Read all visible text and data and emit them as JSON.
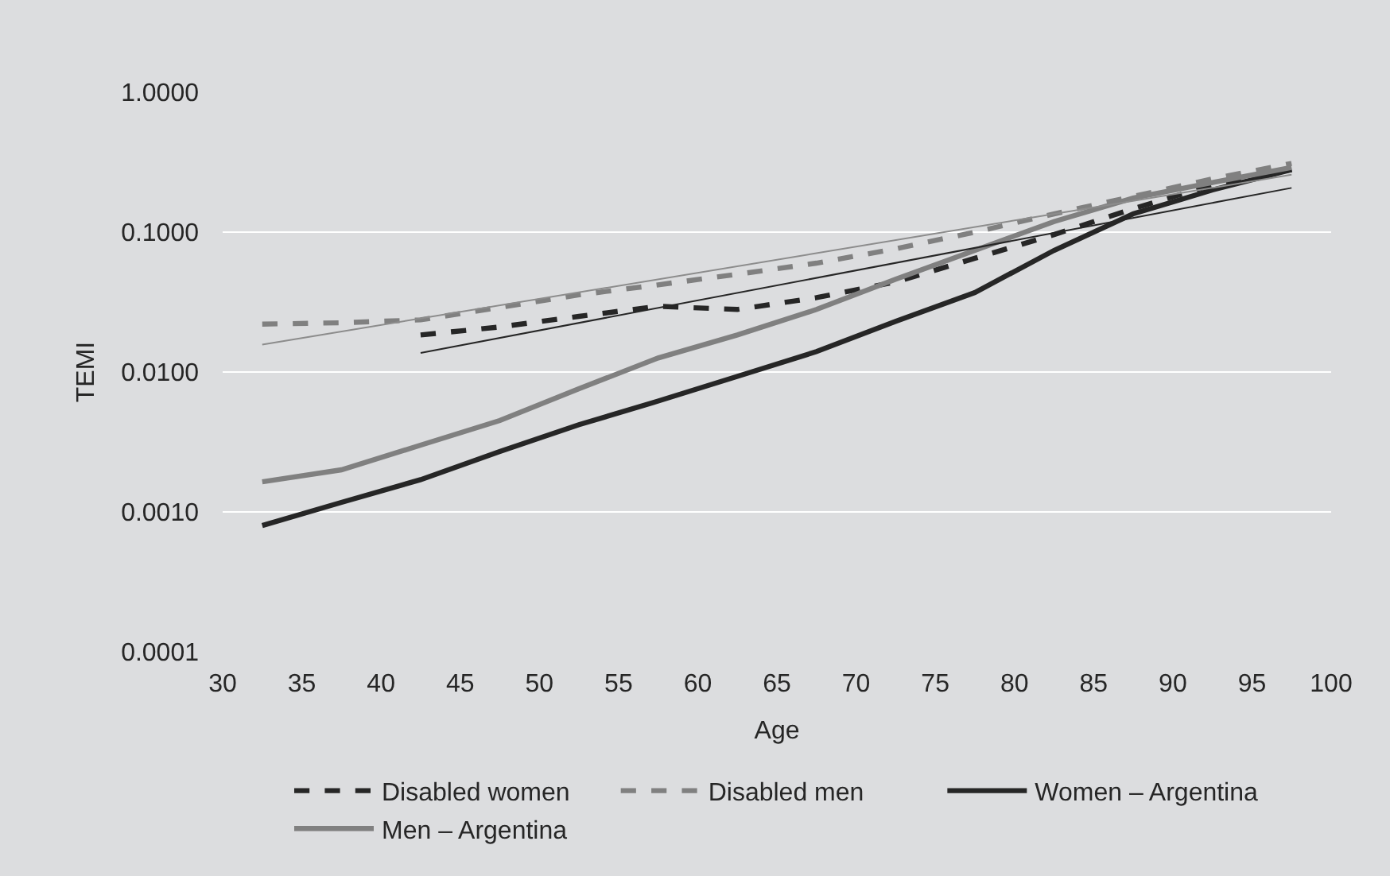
{
  "chart_data": {
    "type": "line",
    "xlabel": "Age",
    "ylabel": "TEMI",
    "x": [
      32.5,
      37.5,
      42.5,
      47.5,
      52.5,
      57.5,
      62.5,
      67.5,
      72.5,
      77.5,
      82.5,
      87.5,
      92.5,
      97.5
    ],
    "series": [
      {
        "name": "Disabled women",
        "color": "#262626",
        "line_style": "dashed",
        "values": [
          null,
          null,
          0.0184,
          0.021,
          0.025,
          0.0295,
          0.028,
          0.034,
          0.044,
          0.065,
          0.096,
          0.147,
          0.217,
          0.28
        ]
      },
      {
        "name": "Disabled men",
        "color": "#808080",
        "line_style": "dashed",
        "values": [
          0.022,
          0.0225,
          0.0236,
          0.029,
          0.0356,
          0.042,
          0.05,
          0.06,
          0.076,
          0.1,
          0.135,
          0.18,
          0.24,
          0.31
        ]
      },
      {
        "name": "Women – Argentina",
        "color": "#262626",
        "line_style": "solid",
        "values": [
          0.0008,
          0.00117,
          0.0017,
          0.0027,
          0.0042,
          0.0062,
          0.0093,
          0.014,
          0.023,
          0.037,
          0.074,
          0.135,
          0.2,
          0.28
        ]
      },
      {
        "name": "Men – Argentina",
        "color": "#808080",
        "line_style": "solid",
        "values": [
          0.00164,
          0.002,
          0.003,
          0.0045,
          0.0076,
          0.0126,
          0.0184,
          0.028,
          0.046,
          0.074,
          0.119,
          0.175,
          0.226,
          0.29
        ]
      },
      {
        "type": "line",
        "color": "#8c8c8c",
        "line_style": "solid",
        "x": [
          32.5,
          97.5
        ],
        "values": [
          0.0157,
          0.257
        ]
      },
      {
        "type": "line",
        "color": "#262626",
        "line_style": "solid",
        "x": [
          42.5,
          97.5
        ],
        "values": [
          0.0137,
          0.207
        ]
      }
    ],
    "log": "y",
    "xlim": [
      30,
      100
    ],
    "xticks": [
      30,
      35,
      40,
      45,
      50,
      55,
      60,
      65,
      70,
      75,
      80,
      85,
      90,
      95,
      100
    ],
    "ylim": [
      0.0001,
      1
    ],
    "yticks": [
      {
        "value": 0.0001,
        "label": "0.0001"
      },
      {
        "value": 0.001,
        "label": "0.0010"
      },
      {
        "value": 0.01,
        "label": "0.0100"
      },
      {
        "value": 0.1,
        "label": "0.1000"
      },
      {
        "value": 1,
        "label": "1.0000"
      }
    ],
    "grid": "y",
    "legend": "bottom",
    "marker": "none"
  }
}
